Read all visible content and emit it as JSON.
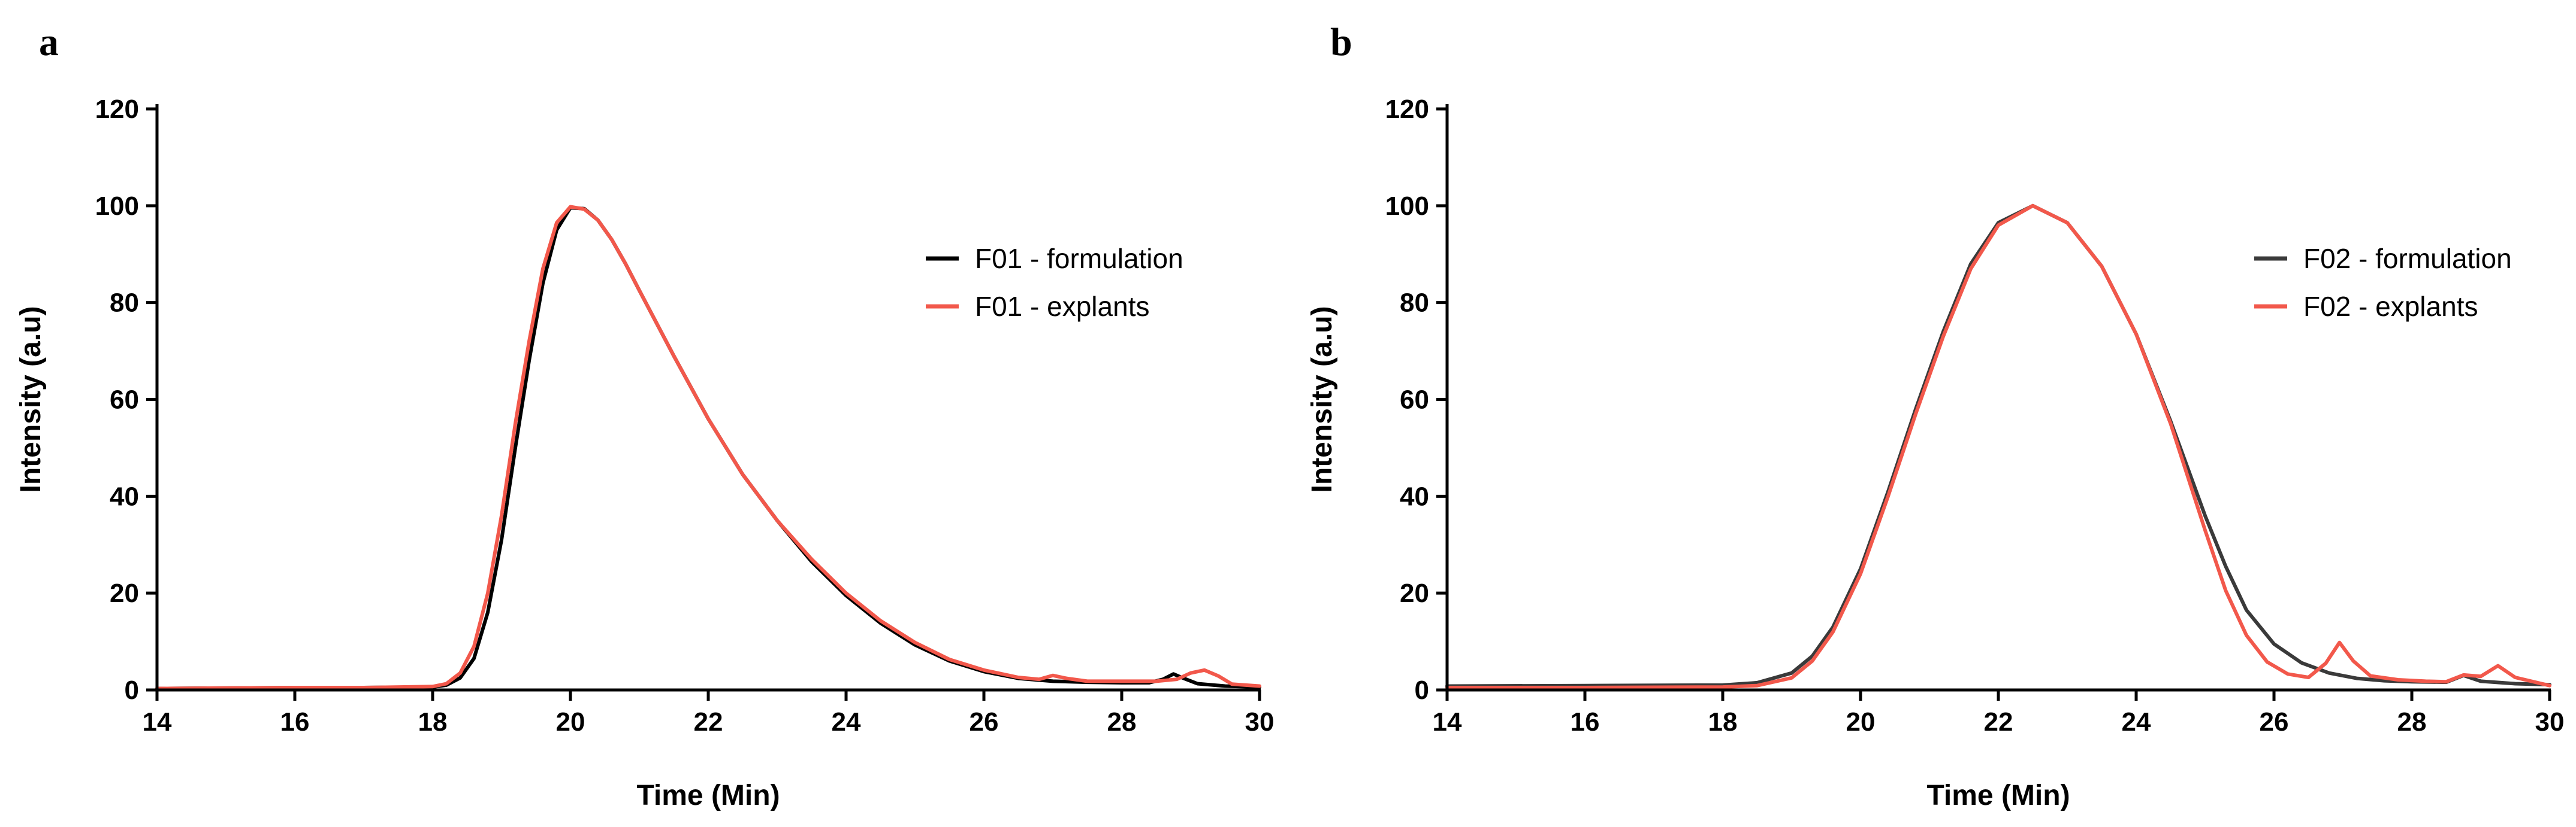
{
  "chart_data": [
    {
      "type": "line",
      "panel_label": "a",
      "title": "",
      "xlabel": "Time (Min)",
      "ylabel": "Intensity (a.u)",
      "xlim": [
        14,
        30
      ],
      "ylim": [
        0,
        120
      ],
      "xticks": [
        14,
        16,
        18,
        20,
        22,
        24,
        26,
        28,
        30
      ],
      "yticks": [
        0,
        20,
        40,
        60,
        80,
        100,
        120
      ],
      "legend_position": "top-right",
      "series": [
        {
          "name": "F01 - formulation",
          "color": "#000000",
          "x": [
            14,
            16,
            17,
            18,
            18.2,
            18.4,
            18.6,
            18.8,
            19,
            19.2,
            19.4,
            19.6,
            19.8,
            20,
            20.2,
            20.4,
            20.6,
            20.8,
            21,
            21.5,
            22,
            22.5,
            23,
            23.5,
            24,
            24.5,
            25,
            25.5,
            26,
            26.5,
            27,
            27.5,
            28,
            28.4,
            28.6,
            28.75,
            28.9,
            29.1,
            29.5,
            30
          ],
          "y": [
            0.3,
            0.5,
            0.5,
            0.6,
            1.0,
            2.5,
            6.5,
            16,
            31,
            50,
            68,
            84,
            95,
            99.6,
            99.4,
            97,
            93,
            88,
            82.5,
            69,
            56,
            44.5,
            35,
            26.5,
            19.5,
            13.8,
            9.3,
            6,
            3.8,
            2.4,
            1.8,
            1.6,
            1.5,
            1.5,
            2.2,
            3.3,
            2.4,
            1.3,
            0.8,
            0.6
          ]
        },
        {
          "name": "F01 - explants",
          "color": "#f2584b",
          "x": [
            14,
            16,
            17,
            18,
            18.2,
            18.4,
            18.6,
            18.8,
            19,
            19.2,
            19.4,
            19.6,
            19.8,
            20,
            20.2,
            20.4,
            20.6,
            20.8,
            21,
            21.5,
            22,
            22.5,
            23,
            23.5,
            24,
            24.5,
            25,
            25.5,
            26,
            26.5,
            26.8,
            27,
            27.2,
            27.5,
            28,
            28.5,
            28.8,
            29,
            29.2,
            29.4,
            29.6,
            30
          ],
          "y": [
            0.3,
            0.5,
            0.5,
            0.7,
            1.3,
            3.5,
            9,
            20,
            36,
            55,
            72,
            87,
            96.5,
            99.8,
            99.3,
            97,
            93,
            88,
            82.5,
            69,
            56,
            44.5,
            35,
            27,
            20,
            14.3,
            9.8,
            6.3,
            4.1,
            2.6,
            2.2,
            3.0,
            2.4,
            1.8,
            1.8,
            1.8,
            2.2,
            3.5,
            4.1,
            2.9,
            1.2,
            0.8
          ]
        }
      ]
    },
    {
      "type": "line",
      "panel_label": "b",
      "title": "",
      "xlabel": "Time (Min)",
      "ylabel": "Intensity (a.u)",
      "xlim": [
        14,
        30
      ],
      "ylim": [
        0,
        120
      ],
      "xticks": [
        14,
        16,
        18,
        20,
        22,
        24,
        26,
        28,
        30
      ],
      "yticks": [
        0,
        20,
        40,
        60,
        80,
        100,
        120
      ],
      "legend_position": "top-right",
      "series": [
        {
          "name": "F02 - formulation",
          "color": "#3a3a3a",
          "x": [
            14,
            16,
            18,
            18.5,
            19,
            19.3,
            19.6,
            20,
            20.4,
            20.8,
            21.2,
            21.6,
            22,
            22.5,
            23,
            23.5,
            24,
            24.5,
            25,
            25.3,
            25.6,
            26,
            26.4,
            26.8,
            27.2,
            27.6,
            28,
            28.5,
            28.75,
            29,
            29.5,
            30
          ],
          "y": [
            0.8,
            0.9,
            1.0,
            1.5,
            3.5,
            7,
            13,
            25,
            41,
            58,
            74,
            88,
            96.5,
            100,
            96.5,
            87.5,
            73.5,
            55.5,
            36,
            25.5,
            16.5,
            9.5,
            5.6,
            3.5,
            2.4,
            1.9,
            1.7,
            1.6,
            3.0,
            1.8,
            1.3,
            1.1
          ]
        },
        {
          "name": "F02 - explants",
          "color": "#f2584b",
          "x": [
            14,
            16,
            18,
            18.5,
            19,
            19.3,
            19.6,
            20,
            20.4,
            20.8,
            21.2,
            21.6,
            22,
            22.5,
            23,
            23.5,
            24,
            24.5,
            25,
            25.3,
            25.6,
            25.9,
            26.2,
            26.5,
            26.75,
            26.95,
            27.15,
            27.4,
            27.8,
            28.2,
            28.5,
            28.75,
            29,
            29.25,
            29.5,
            30
          ],
          "y": [
            0.5,
            0.5,
            0.6,
            0.9,
            2.5,
            6,
            12,
            24,
            40,
            57,
            73,
            87,
            96,
            100,
            96.5,
            87.5,
            73.5,
            55,
            33,
            20.5,
            11.3,
            5.8,
            3.3,
            2.6,
            5.5,
            9.8,
            6,
            2.9,
            2.1,
            1.8,
            1.7,
            3.1,
            2.8,
            5.0,
            2.6,
            0.9
          ]
        }
      ]
    }
  ]
}
